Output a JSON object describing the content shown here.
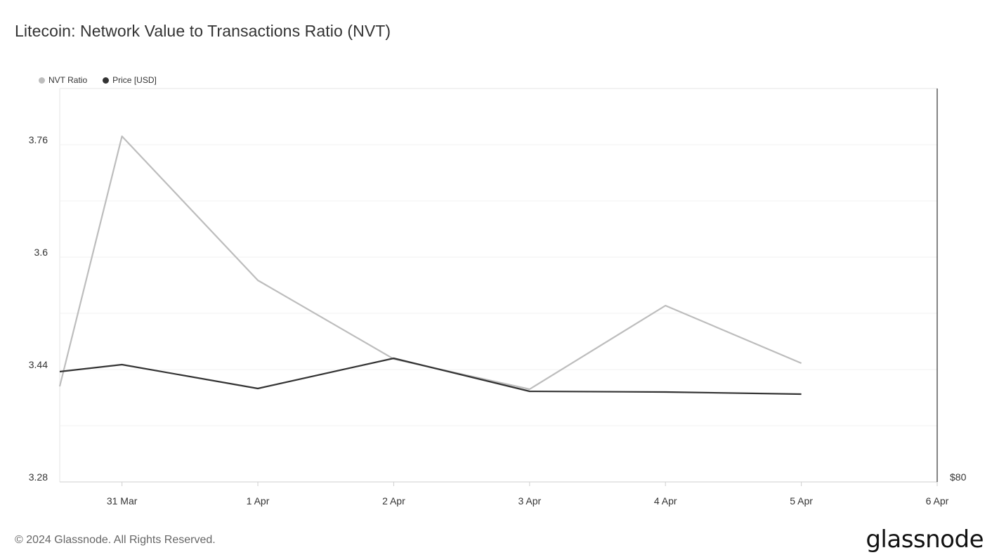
{
  "title": "Litecoin: Network Value to Transactions Ratio (NVT)",
  "footer": "© 2024 Glassnode. All Rights Reserved.",
  "logo": "glassnode",
  "legend": [
    {
      "label": "NVT Ratio",
      "color": "#bdbdbd"
    },
    {
      "label": "Price [USD]",
      "color": "#333333"
    }
  ],
  "chart_data": {
    "type": "line",
    "title": "Litecoin: Network Value to Transactions Ratio (NVT)",
    "x_ticks": [
      "31 Mar",
      "1 Apr",
      "2 Apr",
      "3 Apr",
      "4 Apr",
      "5 Apr",
      "6 Apr"
    ],
    "x_range": [
      "2024-03-30T13:00",
      "2024-04-06T00:00"
    ],
    "y_left": {
      "ticks": [
        "3.76",
        "3.6",
        "3.44",
        "3.28"
      ],
      "values": [
        3.76,
        3.6,
        3.44,
        3.28
      ],
      "range": [
        3.28,
        3.84
      ]
    },
    "y_right": {
      "ticks": [
        "$80"
      ]
    },
    "grid": true,
    "legend_position": "top-left",
    "series": [
      {
        "name": "NVT Ratio",
        "color": "#bdbdbd",
        "axis": "left",
        "x": [
          "2024-03-30T13:00",
          "2024-03-31",
          "2024-04-01",
          "2024-04-02",
          "2024-04-03",
          "2024-04-04",
          "2024-04-05"
        ],
        "values": [
          3.416,
          3.772,
          3.567,
          3.455,
          3.412,
          3.531,
          3.449
        ]
      },
      {
        "name": "Price [USD]",
        "color": "#333333",
        "axis": "left-scaled",
        "x": [
          "2024-03-30T13:00",
          "2024-03-31",
          "2024-04-01",
          "2024-04-02",
          "2024-04-03",
          "2024-04-04",
          "2024-04-05"
        ],
        "values": [
          3.437,
          3.447,
          3.413,
          3.456,
          3.409,
          3.408,
          3.405
        ]
      }
    ]
  }
}
